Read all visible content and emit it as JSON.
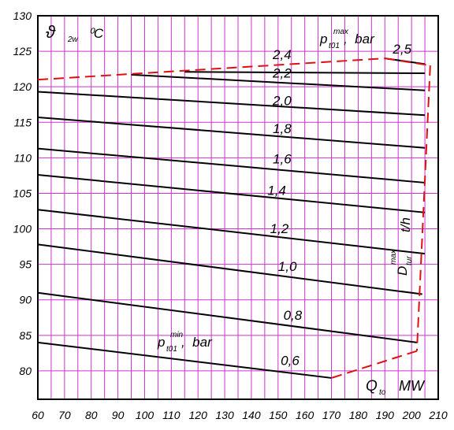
{
  "chart_data": {
    "type": "line",
    "title": "",
    "x_axis": {
      "range": [
        60,
        210
      ],
      "ticks": [
        "60",
        "70",
        "80",
        "90",
        "100",
        "110",
        "120",
        "130",
        "140",
        "150",
        "160",
        "170",
        "180",
        "190",
        "200",
        "210"
      ],
      "label": {
        "main": "Q",
        "subscript": "to",
        "unit": "MW"
      }
    },
    "y_axis": {
      "range": [
        76,
        130
      ],
      "ticks": [
        "130",
        "125",
        "120",
        "115",
        "110",
        "105",
        "100",
        "95",
        "90",
        "85",
        "80"
      ],
      "label": {
        "main": "ϑ",
        "subscript": "2w",
        "unit": "⁰C"
      }
    },
    "grid": true,
    "grid_color": "#cc33cc",
    "line_color": "#000000",
    "boundary_color": "#dd1111",
    "series": [
      {
        "name": "0,6",
        "x": [
          60,
          170
        ],
        "y": [
          84,
          79
        ]
      },
      {
        "name": "0,8",
        "x": [
          60,
          202
        ],
        "y": [
          91,
          84
        ]
      },
      {
        "name": "1,0",
        "x": [
          60,
          204
        ],
        "y": [
          97.8,
          90.8
        ]
      },
      {
        "name": "1,2",
        "x": [
          60,
          205
        ],
        "y": [
          102.7,
          96.5
        ]
      },
      {
        "name": "1,4",
        "x": [
          60,
          205
        ],
        "y": [
          107.6,
          102.3
        ]
      },
      {
        "name": "1,6",
        "x": [
          60,
          205
        ],
        "y": [
          111.3,
          106.5
        ]
      },
      {
        "name": "1,8",
        "x": [
          60,
          205
        ],
        "y": [
          115.7,
          111.4
        ]
      },
      {
        "name": "2,0",
        "x": [
          60,
          205
        ],
        "y": [
          119.3,
          116.0
        ]
      },
      {
        "name": "2,2",
        "x": [
          95,
          205
        ],
        "y": [
          121.7,
          119.5
        ]
      },
      {
        "name": "2,4",
        "x": [
          115,
          205
        ],
        "y": [
          122.1,
          121.9
        ]
      },
      {
        "name": "2,5",
        "x": [
          190,
          205
        ],
        "y": [
          124.0,
          123.2
        ]
      }
    ],
    "line_labels": [
      {
        "text": "0,6",
        "x": 151,
        "y": 80.8
      },
      {
        "text": "0,8",
        "x": 152,
        "y": 87.2
      },
      {
        "text": "1,0",
        "x": 150,
        "y": 94.1
      },
      {
        "text": "1,2",
        "x": 147,
        "y": 99.4
      },
      {
        "text": "1,4",
        "x": 146,
        "y": 104.8
      },
      {
        "text": "1,6",
        "x": 148,
        "y": 109.2
      },
      {
        "text": "1,8",
        "x": 148,
        "y": 113.5
      },
      {
        "text": "2,0",
        "x": 148,
        "y": 117.4
      },
      {
        "text": "2,2",
        "x": 148,
        "y": 121.3
      },
      {
        "text": "2,4",
        "x": 148,
        "y": 123.9
      },
      {
        "text": "2,5",
        "x": 193,
        "y": 124.7
      }
    ],
    "boundary_segments": [
      {
        "x": [
          60,
          190
        ],
        "y": [
          121.0,
          124.0
        ]
      },
      {
        "x": [
          190,
          207
        ],
        "y": [
          124.0,
          123.0
        ]
      },
      {
        "x": [
          207,
          202
        ],
        "y": [
          123.0,
          82.8
        ]
      },
      {
        "x": [
          202,
          170
        ],
        "y": [
          82.8,
          79.0
        ]
      }
    ],
    "annotations": {
      "pmax": {
        "main": "p",
        "sub": "t01",
        "sup": "max",
        "unit": ",  bar"
      },
      "pmin": {
        "main": "p",
        "sub": "t01",
        "sup": "min",
        "unit": ",  bar"
      },
      "dmax": {
        "main": "D",
        "sub": "tur",
        "sup": "max",
        "unit": "t/h"
      }
    }
  }
}
